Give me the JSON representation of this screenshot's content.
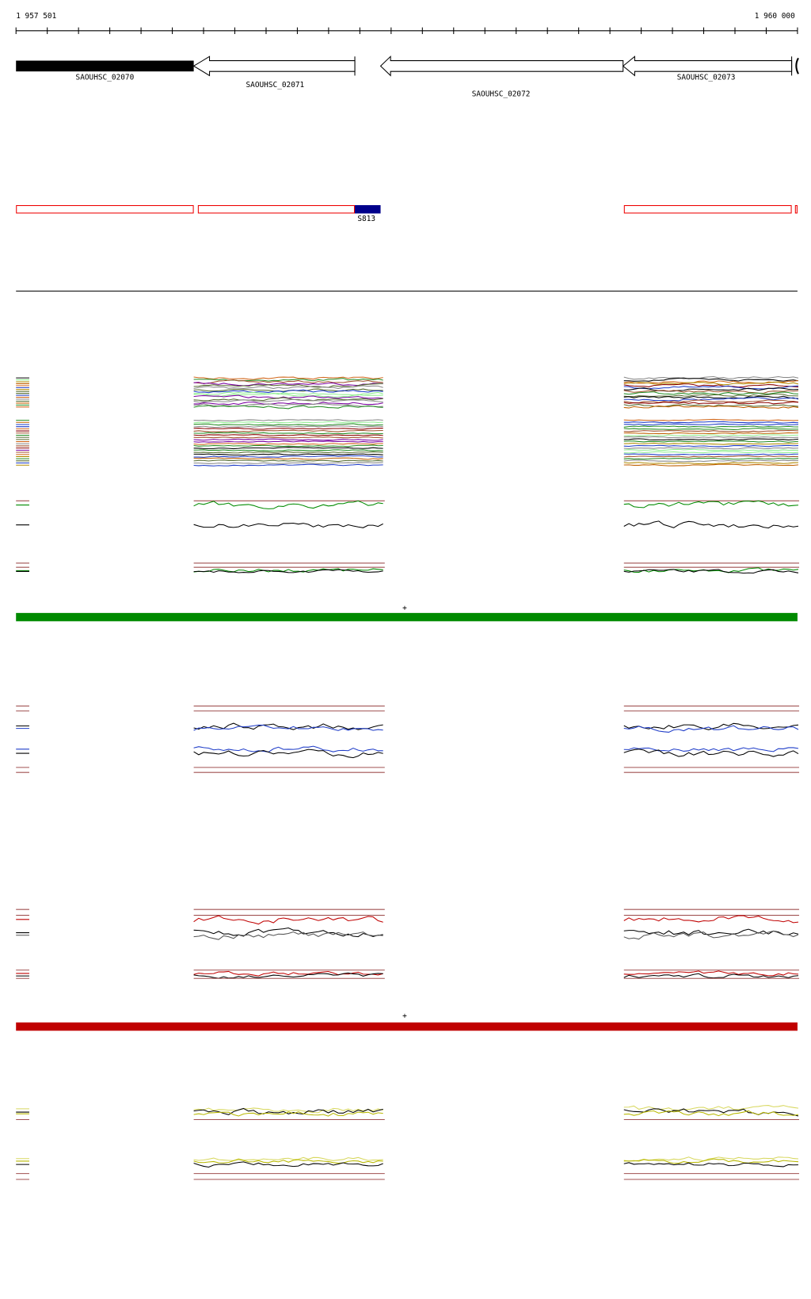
{
  "ruler": {
    "start": "1 957 501",
    "end": "1 960 000"
  },
  "genes": [
    {
      "label": "SAOUHSC_02070"
    },
    {
      "label": "SAOUHSC_02071"
    },
    {
      "label": "SAOUHSC_02072"
    },
    {
      "label": "SAOUHSC_02073"
    }
  ],
  "features": [
    {
      "label": "S813"
    }
  ],
  "strands": [
    "+",
    "+"
  ]
}
